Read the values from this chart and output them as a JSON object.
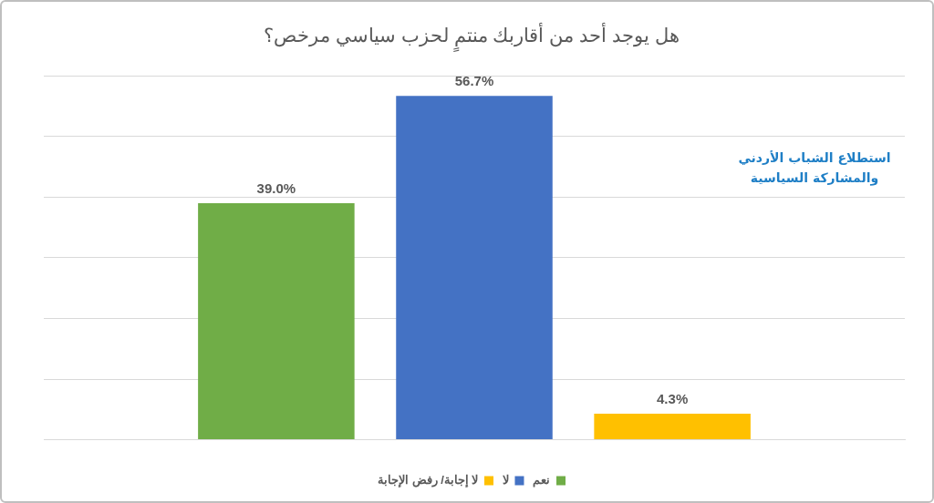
{
  "chart_data": {
    "type": "bar",
    "title": "هل يوجد أحد من أقاربك منتمٍ لحزب سياسي مرخص؟",
    "categories": [
      null
    ],
    "series": [
      {
        "name": "نعم",
        "color": "#70ad47",
        "values": [
          39.0
        ],
        "value_labels": [
          "39.0%"
        ]
      },
      {
        "name": "لا",
        "color": "#4472c4",
        "values": [
          56.7
        ],
        "value_labels": [
          "56.7%"
        ]
      },
      {
        "name": "لا إجابة/ رفض الإجابة",
        "color": "#ffc000",
        "values": [
          4.3
        ],
        "value_labels": [
          "4.3%"
        ]
      }
    ],
    "ylim": [
      0,
      60
    ],
    "yticks": [
      {
        "value": 0,
        "label": null
      },
      {
        "value": 10,
        "label": null
      },
      {
        "value": 20,
        "label": null
      },
      {
        "value": 30,
        "label": null
      },
      {
        "value": 40,
        "label": null
      },
      {
        "value": 50,
        "label": null
      },
      {
        "value": 60,
        "label": null
      }
    ],
    "grid": "y",
    "legend": "bottom",
    "annotations": [
      "استطلاع الشباب الأردني والمشاركة السياسية"
    ]
  }
}
